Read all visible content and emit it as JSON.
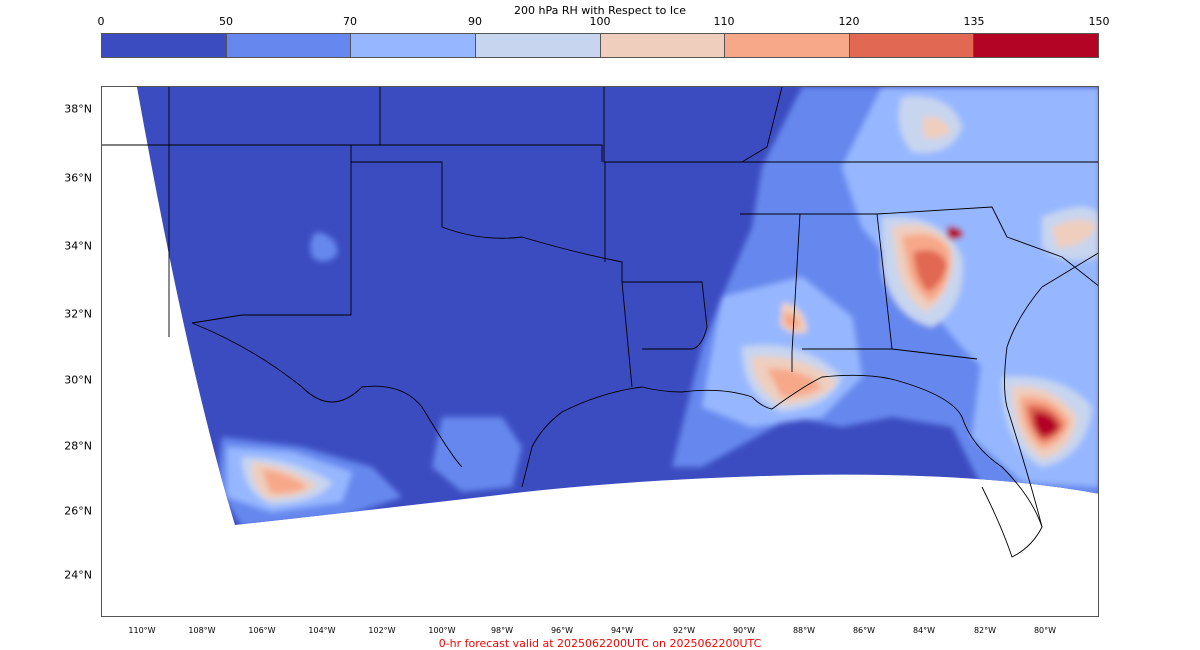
{
  "colorbar": {
    "title": "200 hPa RH with Respect to Ice",
    "ticks": [
      "0",
      "50",
      "70",
      "90",
      "100",
      "110",
      "120",
      "135",
      "150"
    ],
    "colors": [
      "#3b4cc0",
      "#6688ee",
      "#96b7ff",
      "#c8d5ef",
      "#efcebd",
      "#f7a889",
      "#e16852",
      "#b40426"
    ]
  },
  "map": {
    "lat_labels": [
      "38°N",
      "36°N",
      "34°N",
      "32°N",
      "30°N",
      "28°N",
      "26°N",
      "24°N"
    ],
    "lon_labels": [
      "110°W",
      "108°W",
      "106°W",
      "104°W",
      "102°W",
      "100°W",
      "98°W",
      "96°W",
      "94°W",
      "92°W",
      "90°W",
      "88°W",
      "86°W",
      "84°W",
      "82°W",
      "80°W"
    ],
    "background_field_color": "#3b4cc0",
    "outside_domain_color": "#ffffff",
    "boundary_color": "#000000"
  },
  "footer": {
    "text": "0-hr forecast valid at 2025062200UTC on 2025062200UTC",
    "color": "#ff0000"
  }
}
